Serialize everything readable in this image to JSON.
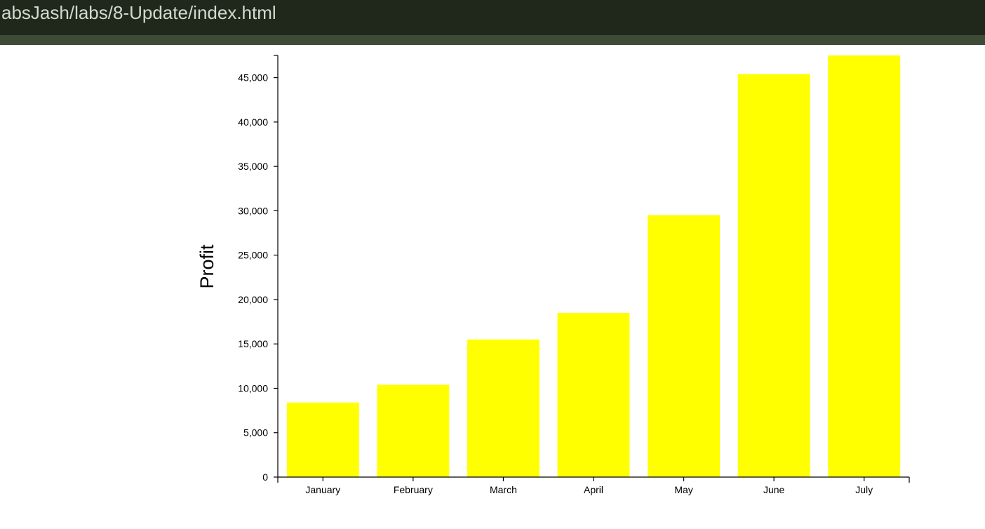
{
  "window": {
    "url_text": "absJash/labs/8-Update/index.html"
  },
  "colors": {
    "bar": "#ffff00",
    "topbar": "#1f281b",
    "subbar": "#3c4a36"
  },
  "chart_data": {
    "type": "bar",
    "title": "",
    "xlabel": "",
    "ylabel": "Profit",
    "categories": [
      "January",
      "February",
      "March",
      "April",
      "May",
      "June",
      "July"
    ],
    "values": [
      8400,
      10400,
      15500,
      18500,
      29500,
      45400,
      47500
    ],
    "ylim": [
      0,
      47500
    ],
    "yticks": [
      0,
      5000,
      10000,
      15000,
      20000,
      25000,
      30000,
      35000,
      40000,
      45000
    ],
    "ytick_labels": [
      "0",
      "5,000",
      "10,000",
      "15,000",
      "20,000",
      "25,000",
      "30,000",
      "35,000",
      "40,000",
      "45,000"
    ],
    "grid": false,
    "legend": "none"
  }
}
